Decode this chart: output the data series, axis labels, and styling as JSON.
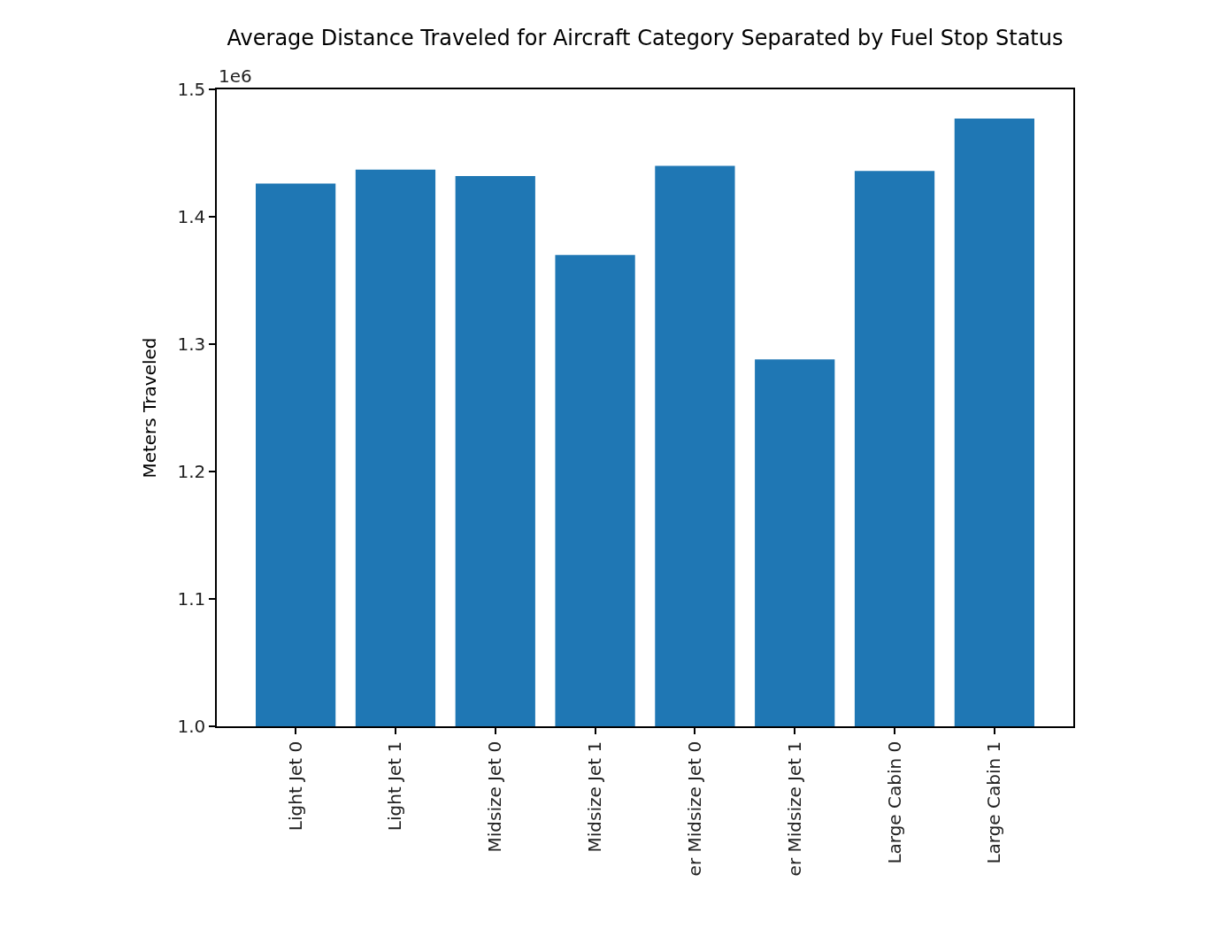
{
  "chart_data": {
    "type": "bar",
    "title": "Average Distance Traveled for Aircraft Category Separated by Fuel Stop Status",
    "ylabel": "Meters Traveled",
    "annotations": [
      "1e6"
    ],
    "categories": [
      "Light Jet 0",
      "Light Jet 1",
      "Midsize Jet 0",
      "Midsize Jet 1",
      "er Midsize Jet 0",
      "er Midsize Jet 1",
      "Large Cabin 0",
      "Large Cabin 1"
    ],
    "values": [
      1.426,
      1.437,
      1.432,
      1.37,
      1.44,
      1.288,
      1.436,
      1.477
    ],
    "color": "#1f77b4",
    "ylim": [
      1.0,
      1.5
    ],
    "yticks": [
      {
        "value": 1,
        "label": "1.0"
      },
      1.1,
      1.2,
      1.3,
      1.4,
      1.5
    ]
  }
}
